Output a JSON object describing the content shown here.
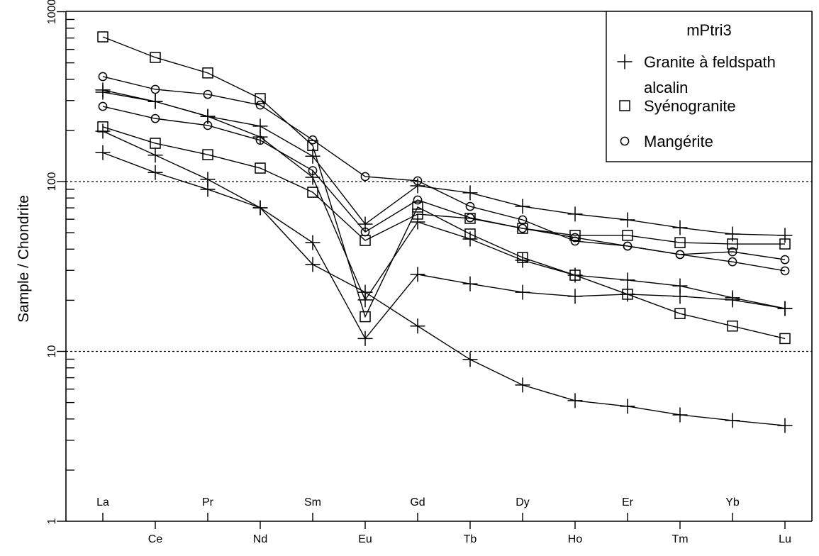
{
  "chart_data": {
    "type": "line",
    "title": "",
    "xlabel": "",
    "ylabel": "Sample / Chondrite",
    "yscale": "log",
    "ylim": [
      1,
      1000
    ],
    "yticks": [
      "1",
      "10",
      "100",
      "1000"
    ],
    "grid_lines_at": [
      10,
      100
    ],
    "categories": [
      "La",
      "Ce",
      "Pr",
      "Nd",
      "Sm",
      "Eu",
      "Gd",
      "Tb",
      "Dy",
      "Ho",
      "Er",
      "Tm",
      "Yb",
      "Lu"
    ],
    "legend": {
      "title": "mPtri3",
      "placement": "top-right",
      "entries": [
        {
          "label_line1": "Granite à feldspath",
          "label_line2": "alcalin",
          "marker": "plus"
        },
        {
          "label_line1": "Syénogranite",
          "label_line2": "",
          "marker": "square"
        },
        {
          "label_line1": "Mangérite",
          "label_line2": "",
          "marker": "circle"
        }
      ]
    },
    "series": [
      {
        "name": "Granite à feldspath alcalin 1",
        "marker": "plus",
        "values": [
          346,
          296,
          242,
          212,
          141,
          56.2,
          94.4,
          85.8,
          71.4,
          64.3,
          59.5,
          53.5,
          49.1,
          48.2
        ]
      },
      {
        "name": "Granite à feldspath alcalin 2",
        "marker": "plus",
        "values": [
          336,
          296,
          242,
          183,
          106,
          20.1,
          57.8,
          45.9,
          34.4,
          28.1,
          26.3,
          24.3,
          20.7,
          17.9
        ]
      },
      {
        "name": "Granite à feldspath alcalin 3",
        "marker": "plus",
        "values": [
          198,
          143,
          103,
          70.1,
          43.7,
          11.9,
          28.4,
          25.0,
          22.3,
          21.1,
          21.7,
          21.1,
          20.1,
          17.9
        ]
      },
      {
        "name": "Granite à feldspath alcalin 4",
        "marker": "plus",
        "values": [
          148,
          113,
          90.0,
          70.1,
          32.5,
          22.3,
          14.1,
          8.96,
          6.34,
          5.13,
          4.75,
          4.23,
          3.92,
          3.66
        ]
      },
      {
        "name": "Syénogranite 1",
        "marker": "square",
        "values": [
          711,
          538,
          436,
          308,
          163,
          16.0,
          70.8,
          49.1,
          35.7,
          28.1,
          21.7,
          16.7,
          14.1,
          11.9
        ]
      },
      {
        "name": "Syénogranite 2",
        "marker": "square",
        "values": [
          210,
          168,
          144,
          120,
          86.5,
          45.0,
          64.3,
          60.7,
          53.0,
          48.2,
          48.2,
          43.7,
          42.9,
          42.9
        ]
      },
      {
        "name": "Mangérite 1",
        "marker": "circle",
        "values": [
          415,
          349,
          326,
          282,
          176,
          107,
          101,
          71.4,
          59.5,
          44.6,
          41.7,
          37.2,
          33.7,
          29.8
        ]
      },
      {
        "name": "Mangérite 2",
        "marker": "circle",
        "values": [
          277,
          235,
          214,
          175,
          116,
          50.5,
          77.9,
          61.2,
          53.0,
          46.8,
          41.7,
          37.2,
          38.6,
          34.7
        ]
      }
    ]
  }
}
